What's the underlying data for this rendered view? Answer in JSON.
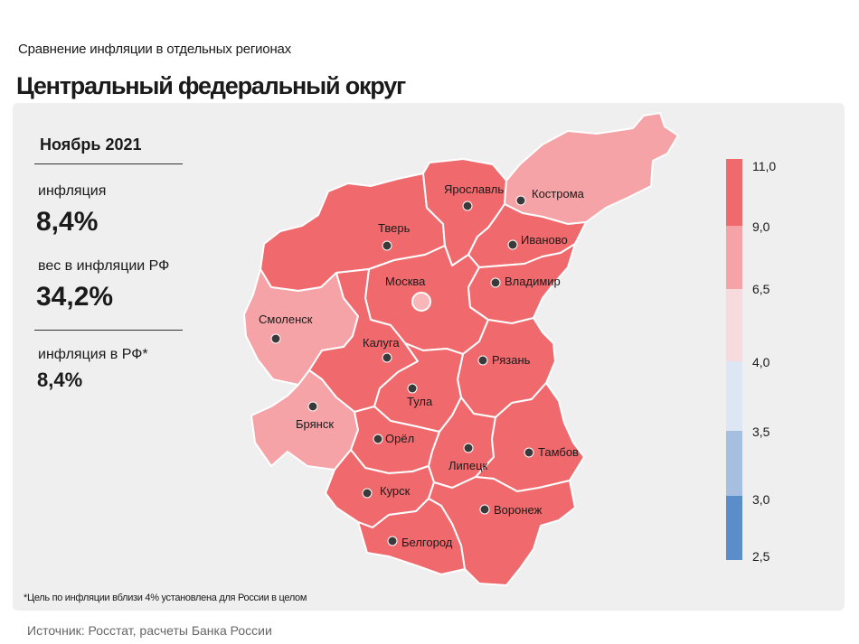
{
  "header": {
    "subtitle": "Сравнение  инфляции  в отдельных  регионах",
    "title": "Центральный федеральный округ"
  },
  "stats": {
    "period": "Ноябрь 2021",
    "inflation_label": "инфляция",
    "inflation_value": "8,4%",
    "weight_label": "вес в инфляции  РФ",
    "weight_value": "34,2%",
    "rf_label": "инфляция  в РФ*",
    "rf_value": "8,4%"
  },
  "footnote": "*Цель по инфляции вблизи 4% установлена для России в целом",
  "source": "Источник: Росстат, расчеты Банка России",
  "scale": {
    "labels": [
      "11,0",
      "9,0",
      "6,5",
      "4,0",
      "3,5",
      "3,0",
      "2,5"
    ],
    "colors": [
      "#f06a6d",
      "#f5a3a6",
      "#f6dadd",
      "#dde6f3",
      "#a6bfe0",
      "#5b8dca"
    ]
  },
  "map": {
    "colors": {
      "high": "#f06a6d",
      "medium": "#f5a3a6",
      "border": "#ffffff"
    },
    "cities": [
      {
        "name": "Ярославль",
        "class": "high"
      },
      {
        "name": "Кострома",
        "class": "medium"
      },
      {
        "name": "Тверь",
        "class": "high"
      },
      {
        "name": "Иваново",
        "class": "high"
      },
      {
        "name": "Москва",
        "class": "high"
      },
      {
        "name": "Владимир",
        "class": "high"
      },
      {
        "name": "Смоленск",
        "class": "medium"
      },
      {
        "name": "Калуга",
        "class": "high"
      },
      {
        "name": "Рязань",
        "class": "high"
      },
      {
        "name": "Тула",
        "class": "high"
      },
      {
        "name": "Брянск",
        "class": "medium"
      },
      {
        "name": "Орёл",
        "class": "high"
      },
      {
        "name": "Липецк",
        "class": "high"
      },
      {
        "name": "Тамбов",
        "class": "high"
      },
      {
        "name": "Курск",
        "class": "high"
      },
      {
        "name": "Воронеж",
        "class": "high"
      },
      {
        "name": "Белгород",
        "class": "high"
      }
    ]
  }
}
